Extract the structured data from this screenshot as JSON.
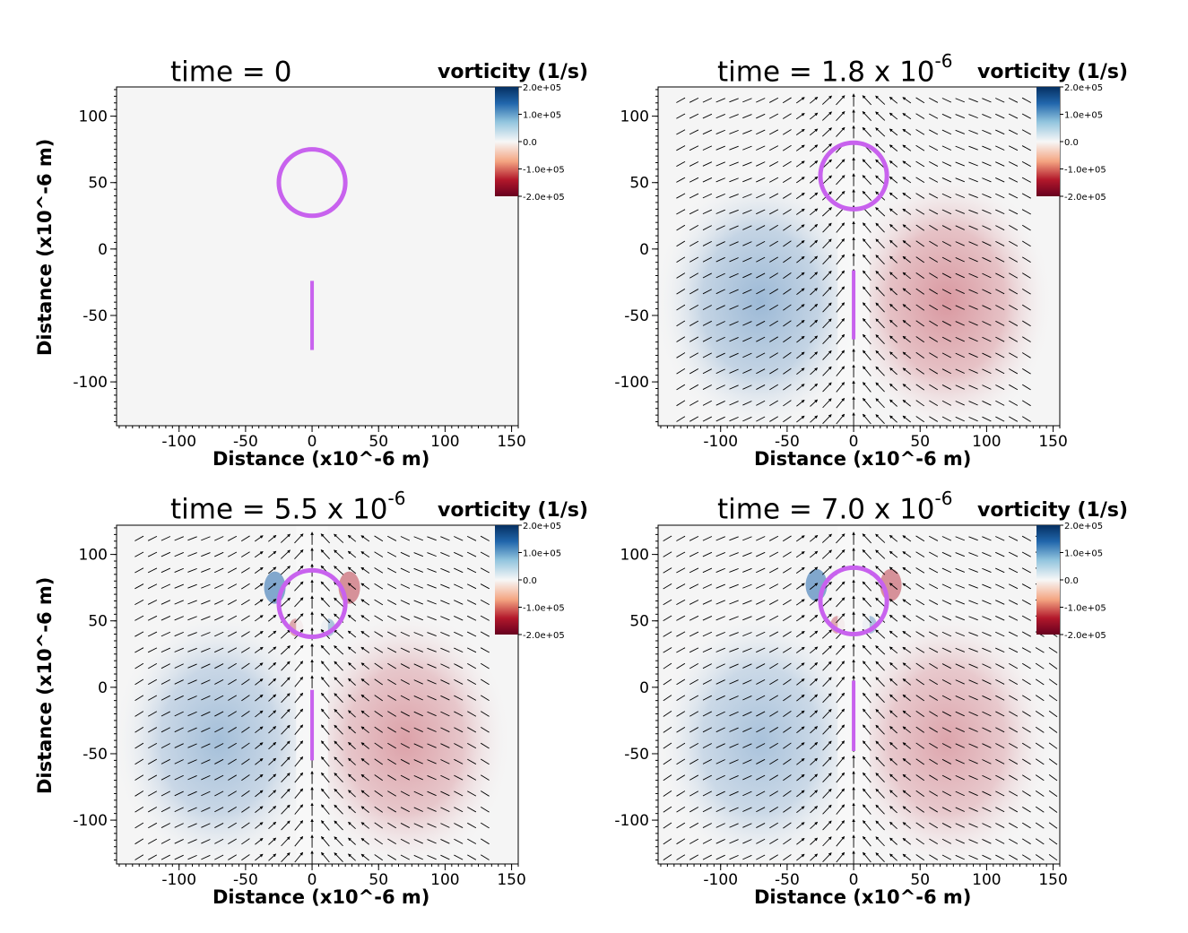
{
  "figure": {
    "colorbar_title": "vorticity (1/s)",
    "x_axis_label": "Distance (x10^-6 m)",
    "y_axis_label": "Distance (x10^-6 m)",
    "time_prefix": "time = "
  },
  "chart_data": [
    {
      "type": "heatmap",
      "title": "time = 0",
      "time_value": "0",
      "time_exponent": "",
      "xlabel": "Distance (x10^-6 m)",
      "ylabel": "Distance (x10^-6 m)",
      "xlim": [
        -147,
        155
      ],
      "ylim": [
        -133,
        122
      ],
      "xticks": [
        -100,
        -50,
        0,
        50,
        100,
        150
      ],
      "yticks": [
        -100,
        -50,
        0,
        50,
        100
      ],
      "colorbar": {
        "title": "vorticity (1/s)",
        "ticks": [
          "2.0e+05",
          "1.0e+05",
          "0.0",
          "-1.0e+05",
          "-2.0e+05"
        ],
        "range": [
          -200000,
          200000
        ]
      },
      "field_strength": 0,
      "has_vectors": false,
      "circle": {
        "cx": 0,
        "cy": 50,
        "r": 25
      },
      "rod": {
        "x": 0,
        "y1": -76,
        "y2": -24
      },
      "colors": {
        "circle": "#c862ee",
        "rod": "#c862ee",
        "positive": "#2166ac",
        "negative": "#b2182b",
        "neutral": "#f5f5f5"
      }
    },
    {
      "type": "heatmap",
      "title": "time = 1.8 x 10^-6",
      "time_value": "1.8 x 10",
      "time_exponent": "-6",
      "xlabel": "Distance (x10^-6 m)",
      "ylabel": "Distance (x10^-6 m)",
      "xlim": [
        -147,
        155
      ],
      "ylim": [
        -133,
        122
      ],
      "xticks": [
        -100,
        -50,
        0,
        50,
        100,
        150
      ],
      "yticks": [
        -100,
        -50,
        0,
        50,
        100
      ],
      "colorbar": {
        "title": "vorticity (1/s)",
        "ticks": [
          "2.0e+05",
          "1.0e+05",
          "0.0",
          "-1.0e+05",
          "-2.0e+05"
        ],
        "range": [
          -200000,
          200000
        ]
      },
      "field_strength": 0.42,
      "has_vectors": true,
      "circle": {
        "cx": 0,
        "cy": 55,
        "r": 25
      },
      "rod": {
        "x": 0,
        "y1": -68,
        "y2": -16
      },
      "colors": {
        "circle": "#c862ee",
        "rod": "#c862ee",
        "positive": "#2166ac",
        "negative": "#b2182b",
        "neutral": "#f5f5f5"
      }
    },
    {
      "type": "heatmap",
      "title": "time = 5.5 x 10^-6",
      "time_value": "5.5 x 10",
      "time_exponent": "-6",
      "xlabel": "Distance (x10^-6 m)",
      "ylabel": "Distance (x10^-6 m)",
      "xlim": [
        -147,
        155
      ],
      "ylim": [
        -133,
        122
      ],
      "xticks": [
        -100,
        -50,
        0,
        50,
        100,
        150
      ],
      "yticks": [
        -100,
        -50,
        0,
        50,
        100
      ],
      "colorbar": {
        "title": "vorticity (1/s)",
        "ticks": [
          "2.0e+05",
          "1.0e+05",
          "0.0",
          "-1.0e+05",
          "-2.0e+05"
        ],
        "range": [
          -200000,
          200000
        ]
      },
      "field_strength": 0.38,
      "has_vectors": true,
      "circle": {
        "cx": 0,
        "cy": 63,
        "r": 25
      },
      "rod": {
        "x": 0,
        "y1": -55,
        "y2": -2
      },
      "colors": {
        "circle": "#c862ee",
        "rod": "#c862ee",
        "positive": "#2166ac",
        "negative": "#b2182b",
        "neutral": "#f5f5f5"
      }
    },
    {
      "type": "heatmap",
      "title": "time = 7.0 x 10^-6",
      "time_value": "7.0 x 10",
      "time_exponent": "-6",
      "xlabel": "Distance (x10^-6 m)",
      "ylabel": "Distance (x10^-6 m)",
      "xlim": [
        -147,
        155
      ],
      "ylim": [
        -133,
        122
      ],
      "xticks": [
        -100,
        -50,
        0,
        50,
        100,
        150
      ],
      "yticks": [
        -100,
        -50,
        0,
        50,
        100
      ],
      "colorbar": {
        "title": "vorticity (1/s)",
        "ticks": [
          "2.0e+05",
          "1.0e+05",
          "0.0",
          "-1.0e+05",
          "-2.0e+05"
        ],
        "range": [
          -200000,
          200000
        ]
      },
      "field_strength": 0.36,
      "has_vectors": true,
      "circle": {
        "cx": 0,
        "cy": 65,
        "r": 25
      },
      "rod": {
        "x": 0,
        "y1": -48,
        "y2": 5
      },
      "colors": {
        "circle": "#c862ee",
        "rod": "#c862ee",
        "positive": "#2166ac",
        "negative": "#b2182b",
        "neutral": "#f5f5f5"
      }
    }
  ]
}
